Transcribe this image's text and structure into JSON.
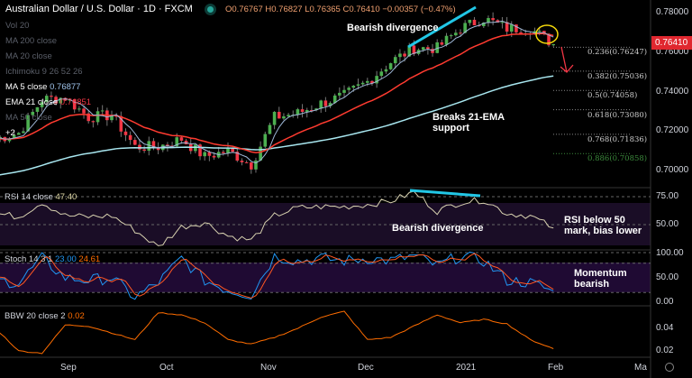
{
  "header": {
    "title": "Australian Dollar / U.S. Dollar · 1D · FXCM",
    "open": "O0.76767",
    "high": "H0.76827",
    "low": "L0.76365",
    "close": "C0.76410",
    "change": "−0.00357 (−0.47%)"
  },
  "legend": {
    "vol": "Vol 20",
    "ma200": "MA 200 close",
    "ma20": "MA 20 close",
    "ichimoku": "Ichimoku 9 26 52 26",
    "ma5": "MA 5 close",
    "ma5_val": "0.76877",
    "ema21": "EMA 21 close",
    "ema21_val": "0.76851",
    "ma50": "MA 50 close",
    "more": "+2"
  },
  "colors": {
    "up": "#26a69a",
    "bull": "#4caf50",
    "bear": "#f23645",
    "ema": "#ff3b30",
    "ma5": "#9fb8d8",
    "slow": "#a8e6ef",
    "rsi": "#d8d2b0",
    "stochK": "#2196f3",
    "stochD": "#ff5722",
    "bbw": "#ff6d00",
    "annot": "#21c7e6"
  },
  "annotations": {
    "div1": "Bearish divergence",
    "ema_break": "Breaks 21-EMA support",
    "rsi_div": "Bearish divergence",
    "rsi_note": "RSI below 50 mark, bias lower",
    "stoch_note": "Momentum bearish"
  },
  "price_axis": {
    "ticks": [
      "0.78000",
      "0.76000",
      "0.74000",
      "0.72000",
      "0.70000"
    ],
    "current": "0.76410"
  },
  "fib": [
    {
      "label": "0.236(0.76247)",
      "v": 0.76247
    },
    {
      "label": "0.382(0.75036)",
      "v": 0.75036
    },
    {
      "label": "0.5(0.74058)",
      "v": 0.74058
    },
    {
      "label": "0.618(0.73080)",
      "v": 0.7308
    },
    {
      "label": "0.768(0.71836)",
      "v": 0.71836
    },
    {
      "label": "0.886(0.70858)",
      "v": 0.70858
    }
  ],
  "time_axis": [
    "Sep",
    "Oct",
    "Nov",
    "Dec",
    "2021",
    "Feb",
    "Ma"
  ],
  "chart_data": [
    {
      "type": "candlestick",
      "title": "AUDUSD 1D",
      "weekly_close": [
        0.716,
        0.719,
        0.736,
        0.737,
        0.727,
        0.728,
        0.712,
        0.712,
        0.716,
        0.707,
        0.71,
        0.703,
        0.727,
        0.729,
        0.734,
        0.738,
        0.745,
        0.755,
        0.762,
        0.762,
        0.772,
        0.777,
        0.772,
        0.772,
        0.764
      ],
      "ylim": [
        0.695,
        0.785
      ]
    },
    {
      "type": "line",
      "title": "RSI 14 close",
      "value": "47.40",
      "weekly": [
        60,
        57,
        70,
        58,
        57,
        58,
        45,
        30,
        48,
        52,
        40,
        36,
        58,
        65,
        66,
        66,
        68,
        71,
        79,
        62,
        70,
        72,
        60,
        58,
        47
      ],
      "levels": [
        75,
        50
      ],
      "ticks": [
        "75.00",
        "50.00"
      ]
    },
    {
      "type": "line",
      "title": "Stoch 14 3 1",
      "k_val": "23.00",
      "d_val": "24.61",
      "weekly": [
        45,
        40,
        90,
        50,
        45,
        50,
        10,
        40,
        90,
        45,
        25,
        15,
        95,
        85,
        90,
        85,
        90,
        85,
        95,
        75,
        95,
        85,
        45,
        40,
        23
      ],
      "ticks": [
        "100.00",
        "50.00",
        "0.00"
      ]
    },
    {
      "type": "line",
      "title": "BBW 20 close 2",
      "value": "0.02",
      "weekly": [
        0.04,
        0.02,
        0.018,
        0.043,
        0.042,
        0.036,
        0.03,
        0.054,
        0.052,
        0.045,
        0.03,
        0.026,
        0.032,
        0.04,
        0.05,
        0.055,
        0.03,
        0.032,
        0.042,
        0.052,
        0.045,
        0.048,
        0.044,
        0.03,
        0.022
      ],
      "ticks": [
        "0.04",
        "0.02"
      ]
    }
  ]
}
